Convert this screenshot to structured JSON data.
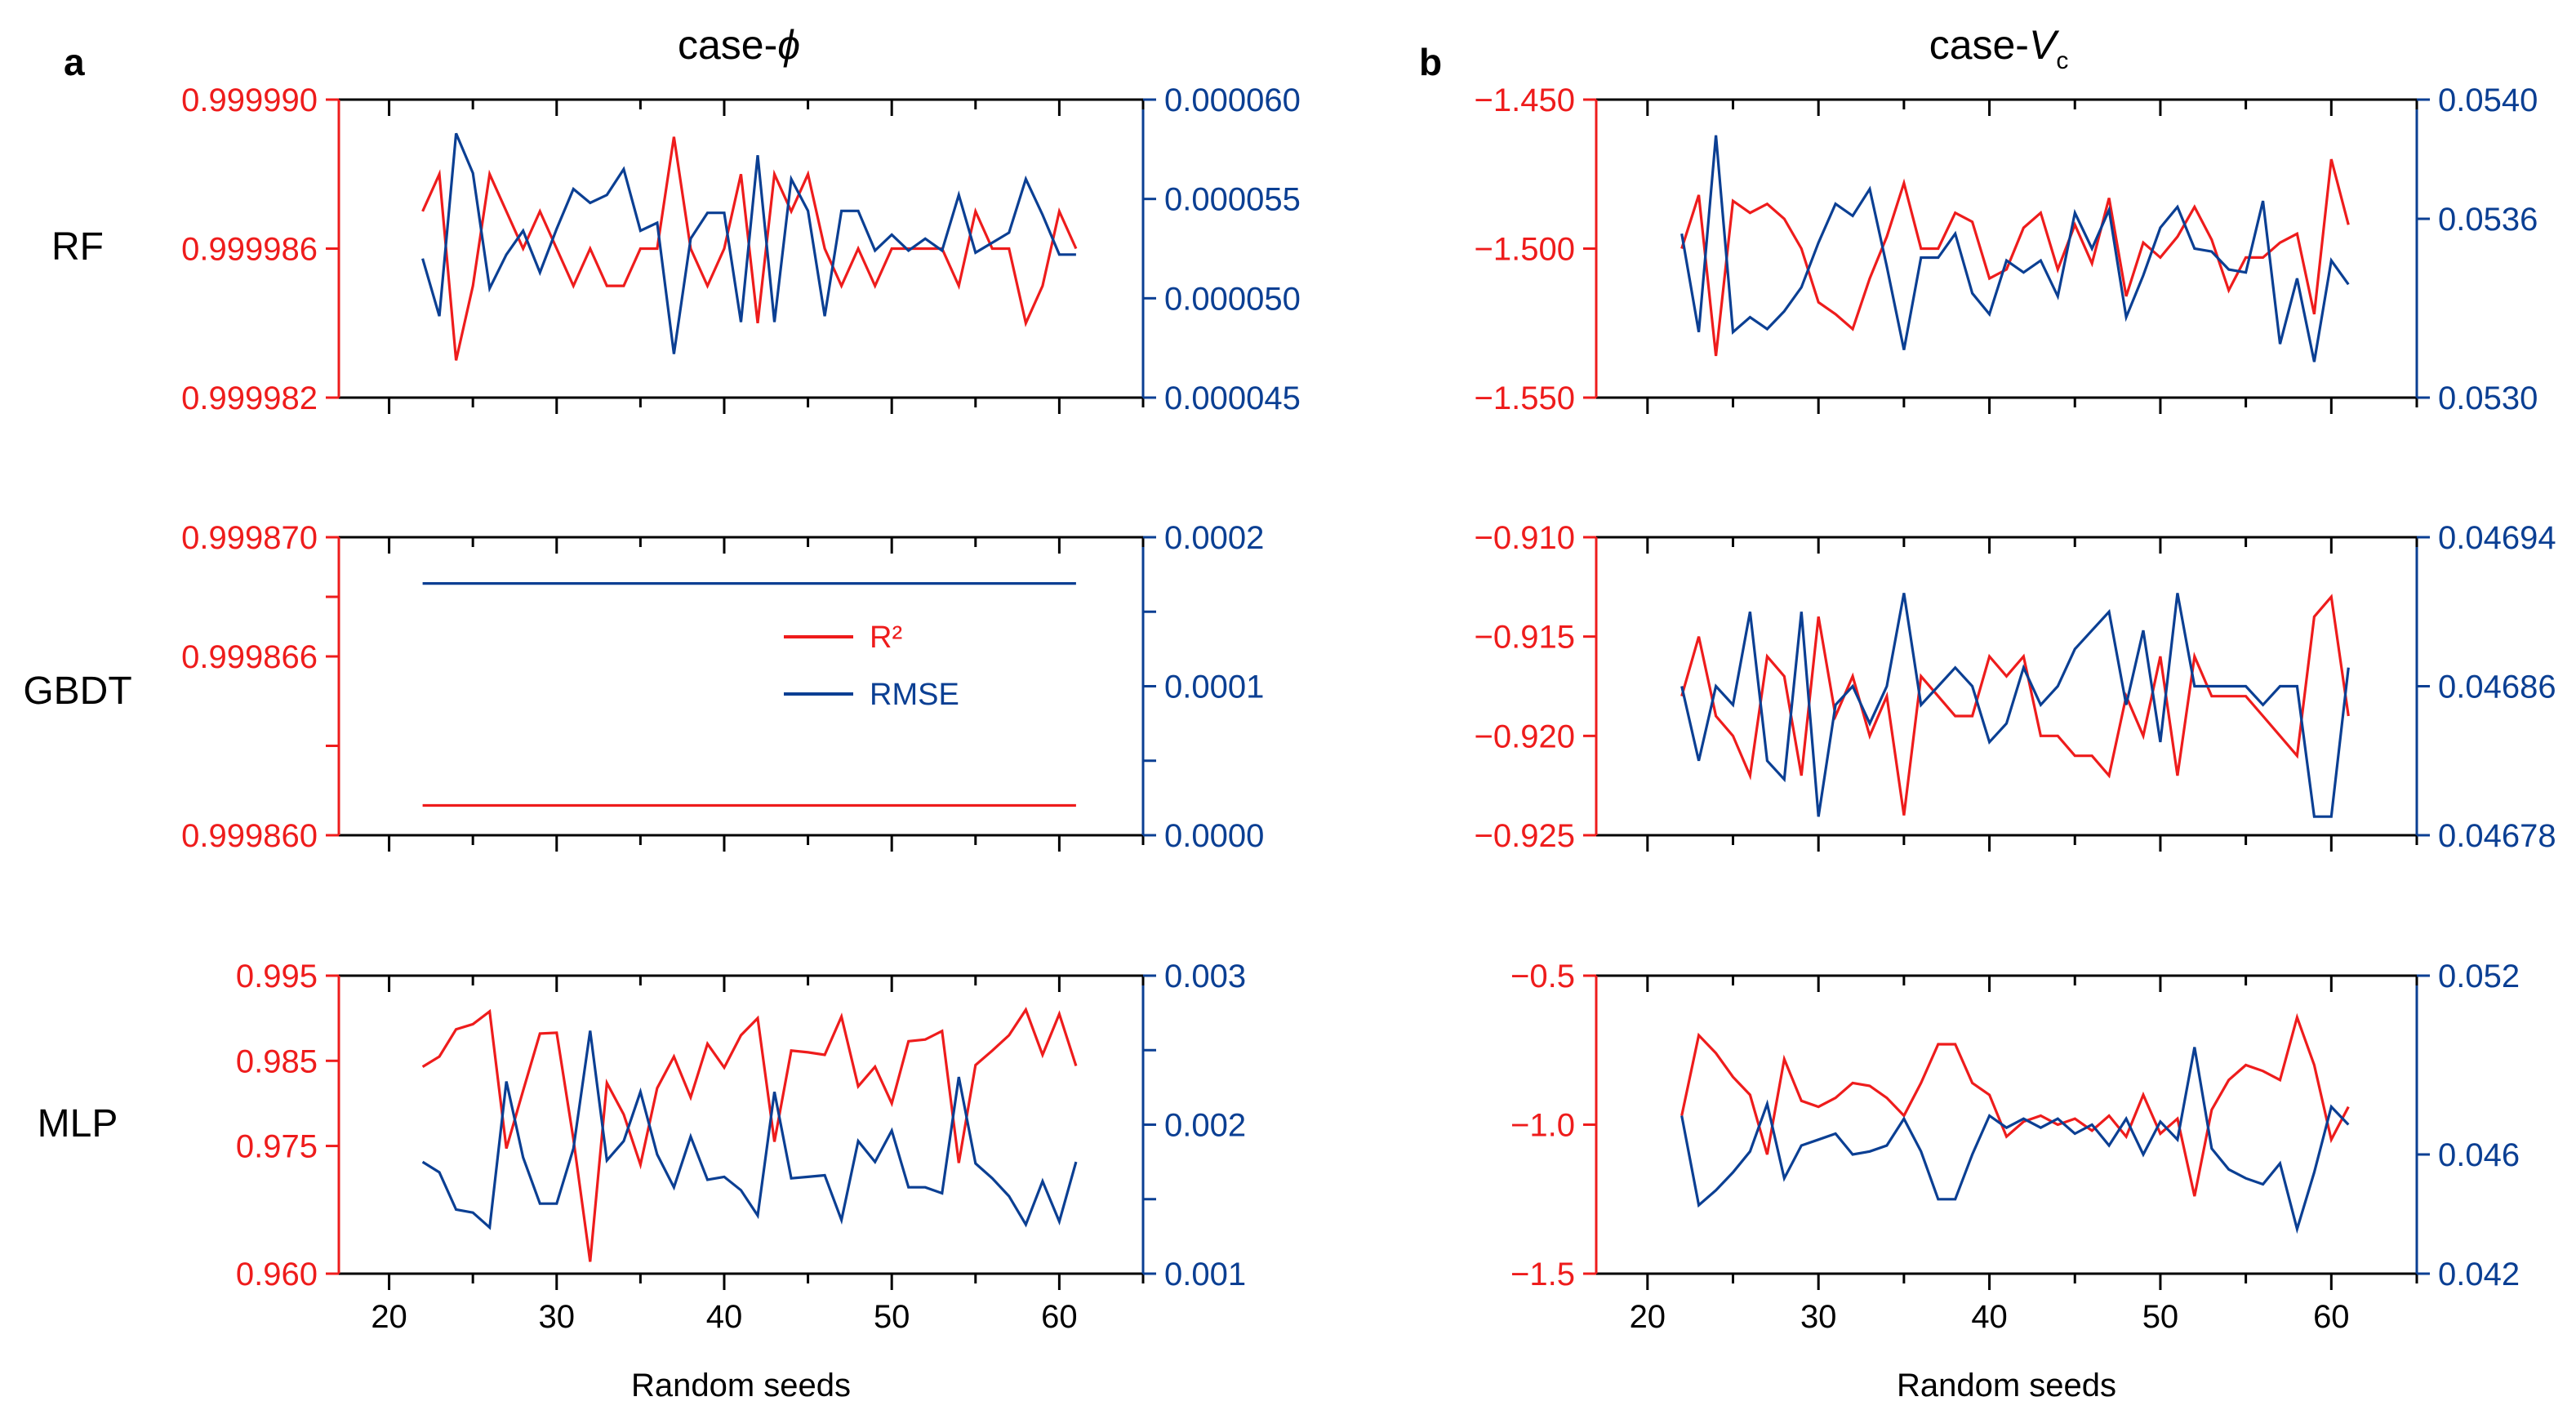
{
  "colors": {
    "r2": "#ee1c1c",
    "rmse": "#0b3f93",
    "axis": "#000000"
  },
  "columns": [
    {
      "label": "a",
      "title": "case-",
      "title_symbol": "ϕ",
      "title_sub": ""
    },
    {
      "label": "b",
      "title": "case-",
      "title_symbol": "V",
      "title_sub": "c"
    }
  ],
  "row_labels": [
    "RF",
    "GBDT",
    "MLP"
  ],
  "legend": {
    "r2": "R²",
    "rmse": "RMSE"
  },
  "chart_data": [
    {
      "type": "line",
      "model": "RF",
      "case": "case-ϕ",
      "xlabel": "",
      "xlim": [
        17,
        65
      ],
      "xticks": [
        20,
        30,
        40,
        50,
        60
      ],
      "xtick_labels": [],
      "left_axis": {
        "label": "R²",
        "ylim": [
          0.999982,
          0.99999
        ],
        "ticks": [
          0.999982,
          0.999986,
          0.99999
        ],
        "tick_labels": [
          "0.999982",
          "0.999986",
          "0.999990"
        ]
      },
      "right_axis": {
        "label": "RMSE",
        "ylim": [
          4.5e-05,
          6e-05
        ],
        "ticks": [
          4.5e-05,
          5e-05,
          5.5e-05,
          6e-05
        ],
        "tick_labels": [
          "0.000045",
          "0.000050",
          "0.000055",
          "0.000060"
        ]
      },
      "x": [
        22,
        23,
        24,
        25,
        26,
        27,
        28,
        29,
        30,
        31,
        32,
        33,
        34,
        35,
        36,
        37,
        38,
        39,
        40,
        41,
        42,
        43,
        44,
        45,
        46,
        47,
        48,
        49,
        50,
        51,
        52,
        53,
        54,
        55,
        56,
        57,
        58,
        59,
        60,
        61
      ],
      "series": [
        {
          "name": "R²",
          "axis": "left",
          "values": [
            0.999987,
            0.999988,
            0.999983,
            0.999985,
            0.999988,
            0.999987,
            0.999986,
            0.999987,
            0.999986,
            0.999985,
            0.999986,
            0.999985,
            0.999985,
            0.999986,
            0.999986,
            0.999989,
            0.999986,
            0.999985,
            0.999986,
            0.999988,
            0.999984,
            0.999988,
            0.999987,
            0.999988,
            0.999986,
            0.999985,
            0.999986,
            0.999985,
            0.999986,
            0.999986,
            0.999986,
            0.999986,
            0.999985,
            0.999987,
            0.999986,
            0.999986,
            0.999984,
            0.999985,
            0.999987,
            0.999986
          ]
        },
        {
          "name": "RMSE",
          "axis": "right",
          "values": [
            5.2e-05,
            4.91e-05,
            5.83e-05,
            5.63e-05,
            5.05e-05,
            5.22e-05,
            5.34e-05,
            5.13e-05,
            5.35e-05,
            5.55e-05,
            5.48e-05,
            5.52e-05,
            5.65e-05,
            5.34e-05,
            5.38e-05,
            4.72e-05,
            5.3e-05,
            5.43e-05,
            5.43e-05,
            4.88e-05,
            5.72e-05,
            4.88e-05,
            5.6e-05,
            5.44e-05,
            4.91e-05,
            5.44e-05,
            5.44e-05,
            5.24e-05,
            5.32e-05,
            5.24e-05,
            5.3e-05,
            5.24e-05,
            5.52e-05,
            5.23e-05,
            5.28e-05,
            5.33e-05,
            5.6e-05,
            5.42e-05,
            5.22e-05,
            5.22e-05
          ]
        }
      ]
    },
    {
      "type": "line",
      "model": "GBDT",
      "case": "case-ϕ",
      "xlabel": "",
      "xlim": [
        17,
        65
      ],
      "xticks": [
        20,
        30,
        40,
        50,
        60
      ],
      "xtick_labels": [],
      "left_axis": {
        "label": "R²",
        "ylim": [
          0.99986,
          0.99987
        ],
        "ticks": [
          0.99986,
          0.999863,
          0.999866,
          0.999868,
          0.99987
        ],
        "tick_labels": [
          "0.999860",
          "0.999866",
          "0.999870"
        ]
      },
      "right_axis": {
        "label": "RMSE",
        "ylim": [
          0,
          0.0002
        ],
        "ticks": [
          0,
          5e-05,
          0.0001,
          0.00015,
          0.0002
        ],
        "tick_labels": [
          "0.0000",
          "0.0001",
          "0.0002"
        ]
      },
      "x": [
        22,
        61
      ],
      "series": [
        {
          "name": "R²",
          "axis": "left",
          "values": [
            0.999861,
            0.999861
          ]
        },
        {
          "name": "RMSE",
          "axis": "right",
          "values": [
            0.000169,
            0.000169
          ]
        }
      ]
    },
    {
      "type": "line",
      "model": "MLP",
      "case": "case-ϕ",
      "xlabel": "Random seeds",
      "xlim": [
        17,
        65
      ],
      "xticks": [
        20,
        30,
        40,
        50,
        60
      ],
      "xtick_labels": [
        "20",
        "30",
        "40",
        "50",
        "60"
      ],
      "left_axis": {
        "label": "R²",
        "ylim": [
          0.96,
          0.995
        ],
        "ticks": [
          0.96,
          0.975,
          0.985,
          0.995
        ],
        "tick_labels": [
          "0.960",
          "0.975",
          "0.985",
          "0.995"
        ]
      },
      "right_axis": {
        "label": "RMSE",
        "ylim": [
          0.001,
          0.003
        ],
        "ticks": [
          0.001,
          0.0015,
          0.002,
          0.0025,
          0.003
        ],
        "tick_labels": [
          "0.001",
          "0.002",
          "0.003"
        ]
      },
      "x": [
        22,
        23,
        24,
        25,
        26,
        27,
        28,
        29,
        30,
        31,
        32,
        33,
        34,
        35,
        36,
        37,
        38,
        39,
        40,
        41,
        42,
        43,
        44,
        45,
        46,
        47,
        48,
        49,
        50,
        51,
        52,
        53,
        54,
        55,
        56,
        57,
        58,
        59,
        60,
        61
      ],
      "series": [
        {
          "name": "R²",
          "axis": "left",
          "values": [
            0.9843,
            0.9855,
            0.9887,
            0.9893,
            0.9908,
            0.9747,
            0.9815,
            0.9882,
            0.9883,
            0.9758,
            0.9614,
            0.9824,
            0.9787,
            0.9728,
            0.9818,
            0.9855,
            0.9807,
            0.987,
            0.9842,
            0.988,
            0.99,
            0.9755,
            0.9862,
            0.986,
            0.9857,
            0.9902,
            0.982,
            0.9843,
            0.98,
            0.9873,
            0.9875,
            0.9885,
            0.973,
            0.9845,
            0.9862,
            0.988,
            0.991,
            0.9857,
            0.9905,
            0.9844
          ]
        },
        {
          "name": "RMSE",
          "axis": "right",
          "values": [
            0.00175,
            0.00168,
            0.00143,
            0.00141,
            0.00131,
            0.00229,
            0.00178,
            0.00147,
            0.00147,
            0.00184,
            0.00263,
            0.00176,
            0.00189,
            0.00222,
            0.0018,
            0.00158,
            0.00192,
            0.00163,
            0.00165,
            0.00156,
            0.00139,
            0.00222,
            0.00164,
            0.00165,
            0.00166,
            0.00136,
            0.00189,
            0.00175,
            0.00196,
            0.00158,
            0.00158,
            0.00154,
            0.00232,
            0.00174,
            0.00164,
            0.00152,
            0.00133,
            0.00162,
            0.00135,
            0.00175
          ]
        }
      ]
    },
    {
      "type": "line",
      "model": "RF",
      "case": "case-Vc",
      "xlabel": "",
      "xlim": [
        17,
        65
      ],
      "xticks": [
        20,
        30,
        40,
        50,
        60
      ],
      "xtick_labels": [],
      "left_axis": {
        "label": "R²",
        "ylim": [
          -1.55,
          -1.45
        ],
        "ticks": [
          -1.55,
          -1.5,
          -1.45
        ],
        "tick_labels": [
          "−1.550",
          "−1.500",
          "−1.450"
        ]
      },
      "right_axis": {
        "label": "RMSE",
        "ylim": [
          0.053,
          0.054
        ],
        "ticks": [
          0.053,
          0.0536,
          0.054
        ],
        "tick_labels": [
          "0.0530",
          "0.0536",
          "0.0540"
        ]
      },
      "x": [
        22,
        23,
        24,
        25,
        26,
        27,
        28,
        29,
        30,
        31,
        32,
        33,
        34,
        35,
        36,
        37,
        38,
        39,
        40,
        41,
        42,
        43,
        44,
        45,
        46,
        47,
        48,
        49,
        50,
        51,
        52,
        53,
        54,
        55,
        56,
        57,
        58,
        59,
        60,
        61
      ],
      "series": [
        {
          "name": "R²",
          "axis": "left",
          "values": [
            -1.5,
            -1.482,
            -1.536,
            -1.484,
            -1.488,
            -1.485,
            -1.49,
            -1.5,
            -1.518,
            -1.522,
            -1.527,
            -1.51,
            -1.496,
            -1.478,
            -1.5,
            -1.5,
            -1.488,
            -1.491,
            -1.51,
            -1.507,
            -1.493,
            -1.488,
            -1.507,
            -1.492,
            -1.505,
            -1.483,
            -1.516,
            -1.498,
            -1.503,
            -1.496,
            -1.486,
            -1.497,
            -1.514,
            -1.503,
            -1.503,
            -1.498,
            -1.495,
            -1.522,
            -1.47,
            -1.492
          ]
        },
        {
          "name": "RMSE",
          "axis": "right",
          "values": [
            0.05355,
            0.05322,
            0.05388,
            0.05322,
            0.05327,
            0.05323,
            0.05329,
            0.05337,
            0.05352,
            0.05365,
            0.05361,
            0.0537,
            0.05344,
            0.05316,
            0.05347,
            0.05347,
            0.05355,
            0.05335,
            0.05328,
            0.05346,
            0.05342,
            0.05346,
            0.05334,
            0.05362,
            0.0535,
            0.05363,
            0.05327,
            0.05341,
            0.05357,
            0.05364,
            0.0535,
            0.05349,
            0.05343,
            0.05342,
            0.05366,
            0.05318,
            0.0534,
            0.05312,
            0.05346,
            0.05338
          ]
        }
      ]
    },
    {
      "type": "line",
      "model": "GBDT",
      "case": "case-Vc",
      "xlabel": "",
      "xlim": [
        17,
        65
      ],
      "xticks": [
        20,
        30,
        40,
        50,
        60
      ],
      "xtick_labels": [],
      "left_axis": {
        "label": "R²",
        "ylim": [
          -0.925,
          -0.91
        ],
        "ticks": [
          -0.925,
          -0.92,
          -0.915,
          -0.91
        ],
        "tick_labels": [
          "−0.925",
          "−0.920",
          "−0.915",
          "−0.910"
        ]
      },
      "right_axis": {
        "label": "RMSE",
        "ylim": [
          0.04678,
          0.04694
        ],
        "ticks": [
          0.04678,
          0.04686,
          0.04694
        ],
        "tick_labels": [
          "0.04678",
          "0.04686",
          "0.04694"
        ]
      },
      "x": [
        22,
        23,
        24,
        25,
        26,
        27,
        28,
        29,
        30,
        31,
        32,
        33,
        34,
        35,
        36,
        37,
        38,
        39,
        40,
        41,
        42,
        43,
        44,
        45,
        46,
        47,
        48,
        49,
        50,
        51,
        52,
        53,
        54,
        55,
        56,
        57,
        58,
        59,
        60,
        61
      ],
      "series": [
        {
          "name": "R²",
          "axis": "left",
          "values": [
            -0.918,
            -0.915,
            -0.919,
            -0.92,
            -0.922,
            -0.916,
            -0.917,
            -0.922,
            -0.914,
            -0.919,
            -0.917,
            -0.92,
            -0.918,
            -0.924,
            -0.917,
            -0.918,
            -0.919,
            -0.919,
            -0.916,
            -0.917,
            -0.916,
            -0.92,
            -0.92,
            -0.921,
            -0.921,
            -0.922,
            -0.918,
            -0.92,
            -0.916,
            -0.922,
            -0.916,
            -0.918,
            -0.918,
            -0.918,
            -0.919,
            -0.92,
            -0.921,
            -0.914,
            -0.913,
            -0.919
          ]
        },
        {
          "name": "RMSE",
          "axis": "right",
          "values": [
            0.04686,
            0.04682,
            0.04686,
            0.04685,
            0.0469,
            0.04682,
            0.04681,
            0.0469,
            0.04679,
            0.04685,
            0.04686,
            0.04684,
            0.04686,
            0.04691,
            0.04685,
            0.04686,
            0.04687,
            0.04686,
            0.04683,
            0.04684,
            0.04687,
            0.04685,
            0.04686,
            0.04688,
            0.04689,
            0.0469,
            0.04685,
            0.04689,
            0.04683,
            0.04691,
            0.04686,
            0.04686,
            0.04686,
            0.04686,
            0.04685,
            0.04686,
            0.04686,
            0.04679,
            0.04679,
            0.04687
          ]
        }
      ]
    },
    {
      "type": "line",
      "model": "MLP",
      "case": "case-Vc",
      "xlabel": "Random seeds",
      "xlim": [
        17,
        65
      ],
      "xticks": [
        20,
        30,
        40,
        50,
        60
      ],
      "xtick_labels": [
        "20",
        "30",
        "40",
        "50",
        "60"
      ],
      "left_axis": {
        "label": "R²",
        "ylim": [
          -1.5,
          -0.5
        ],
        "ticks": [
          -1.5,
          -1.0,
          -0.5
        ],
        "tick_labels": [
          "−1.5",
          "−1.0",
          "−0.5"
        ]
      },
      "right_axis": {
        "label": "RMSE",
        "ylim": [
          0.042,
          0.052
        ],
        "ticks": [
          0.042,
          0.046,
          0.052
        ],
        "tick_labels": [
          "0.042",
          "0.046",
          "0.052"
        ]
      },
      "x": [
        22,
        23,
        24,
        25,
        26,
        27,
        28,
        29,
        30,
        31,
        32,
        33,
        34,
        35,
        36,
        37,
        38,
        39,
        40,
        41,
        42,
        43,
        44,
        45,
        46,
        47,
        48,
        49,
        50,
        51,
        52,
        53,
        54,
        55,
        56,
        57,
        58,
        59,
        60,
        61
      ],
      "series": [
        {
          "name": "R²",
          "axis": "left",
          "values": [
            -0.97,
            -0.7,
            -0.76,
            -0.84,
            -0.9,
            -1.1,
            -0.78,
            -0.92,
            -0.94,
            -0.91,
            -0.86,
            -0.87,
            -0.91,
            -0.97,
            -0.86,
            -0.73,
            -0.73,
            -0.86,
            -0.9,
            -1.04,
            -0.99,
            -0.97,
            -1.0,
            -0.98,
            -1.02,
            -0.97,
            -1.04,
            -0.9,
            -1.03,
            -0.98,
            -1.24,
            -0.95,
            -0.85,
            -0.8,
            -0.82,
            -0.85,
            -0.64,
            -0.8,
            -1.05,
            -0.94
          ]
        },
        {
          "name": "RMSE",
          "axis": "right",
          "values": [
            0.0473,
            0.0443,
            0.0448,
            0.0454,
            0.0461,
            0.0477,
            0.0452,
            0.0463,
            0.0465,
            0.0467,
            0.046,
            0.0461,
            0.0463,
            0.0472,
            0.0461,
            0.0445,
            0.0445,
            0.046,
            0.0473,
            0.0469,
            0.0472,
            0.0469,
            0.0472,
            0.0467,
            0.047,
            0.0463,
            0.0472,
            0.046,
            0.0471,
            0.0465,
            0.0496,
            0.0462,
            0.0455,
            0.0452,
            0.045,
            0.0457,
            0.0435,
            0.0454,
            0.0476,
            0.047
          ]
        }
      ]
    }
  ]
}
